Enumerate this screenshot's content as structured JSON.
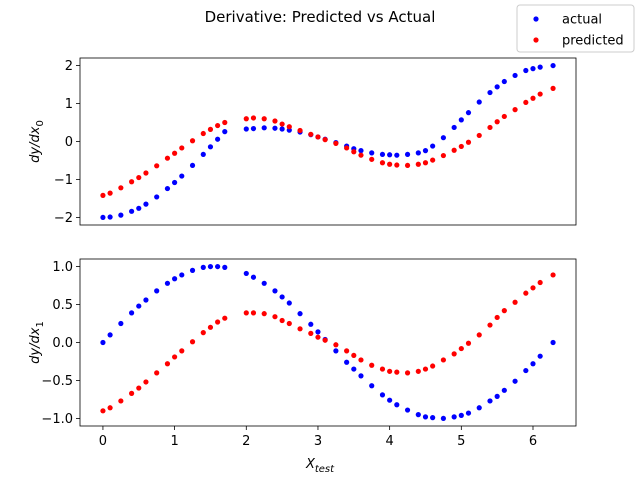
{
  "figure": {
    "title": "Derivative: Predicted vs Actual"
  },
  "legend": {
    "placement": "top-right",
    "entries": [
      {
        "label": "actual",
        "color": "#0000ff"
      },
      {
        "label": "predicted",
        "color": "#ff0000"
      }
    ]
  },
  "chart_data": [
    {
      "type": "scatter",
      "title": "",
      "xlabel": "",
      "ylabel": "dy/dx",
      "ylabel_sub": "0",
      "xlim": [
        -0.32,
        6.6
      ],
      "ylim": [
        -2.2,
        2.2
      ],
      "xticks": [],
      "yticks": [
        -2,
        -1,
        0,
        1,
        2
      ],
      "ytick_labels": [
        "−2",
        "−1",
        "0",
        "1",
        "2"
      ],
      "grid": false,
      "series": [
        {
          "name": "actual",
          "color": "#0000ff",
          "points": [
            [
              0.0,
              -2.0
            ],
            [
              0.1,
              -1.99
            ],
            [
              0.25,
              -1.94
            ],
            [
              0.4,
              -1.84
            ],
            [
              0.5,
              -1.76
            ],
            [
              0.6,
              -1.65
            ],
            [
              0.75,
              -1.46
            ],
            [
              0.9,
              -1.24
            ],
            [
              1.0,
              -1.08
            ],
            [
              1.1,
              -0.91
            ],
            [
              1.25,
              -0.63
            ],
            [
              1.4,
              -0.34
            ],
            [
              1.5,
              -0.14
            ],
            [
              1.6,
              0.06
            ],
            [
              1.7,
              0.26
            ],
            [
              2.0,
              0.33
            ],
            [
              2.1,
              0.34
            ],
            [
              2.25,
              0.36
            ],
            [
              2.4,
              0.35
            ],
            [
              2.5,
              0.33
            ],
            [
              2.6,
              0.3
            ],
            [
              2.75,
              0.25
            ],
            [
              2.9,
              0.18
            ],
            [
              3.0,
              0.12
            ],
            [
              3.1,
              0.06
            ],
            [
              3.25,
              -0.03
            ],
            [
              3.4,
              -0.12
            ],
            [
              3.5,
              -0.19
            ],
            [
              3.6,
              -0.24
            ],
            [
              3.75,
              -0.3
            ],
            [
              3.9,
              -0.34
            ],
            [
              4.0,
              -0.35
            ],
            [
              4.1,
              -0.36
            ],
            [
              4.25,
              -0.34
            ],
            [
              4.4,
              -0.3
            ],
            [
              4.5,
              -0.24
            ],
            [
              4.6,
              -0.12
            ],
            [
              4.75,
              0.1
            ],
            [
              4.9,
              0.37
            ],
            [
              5.0,
              0.57
            ],
            [
              5.1,
              0.76
            ],
            [
              5.25,
              1.04
            ],
            [
              5.4,
              1.29
            ],
            [
              5.5,
              1.44
            ],
            [
              5.6,
              1.58
            ],
            [
              5.75,
              1.74
            ],
            [
              5.9,
              1.87
            ],
            [
              6.0,
              1.92
            ],
            [
              6.1,
              1.96
            ],
            [
              6.28,
              2.0
            ]
          ]
        },
        {
          "name": "predicted",
          "color": "#ff0000",
          "points": [
            [
              0.0,
              -1.42
            ],
            [
              0.1,
              -1.36
            ],
            [
              0.25,
              -1.22
            ],
            [
              0.4,
              -1.06
            ],
            [
              0.5,
              -0.95
            ],
            [
              0.6,
              -0.83
            ],
            [
              0.75,
              -0.64
            ],
            [
              0.9,
              -0.44
            ],
            [
              1.0,
              -0.31
            ],
            [
              1.1,
              -0.17
            ],
            [
              1.25,
              0.02
            ],
            [
              1.4,
              0.21
            ],
            [
              1.5,
              0.32
            ],
            [
              1.6,
              0.42
            ],
            [
              1.7,
              0.5
            ],
            [
              2.0,
              0.6
            ],
            [
              2.1,
              0.62
            ],
            [
              2.25,
              0.6
            ],
            [
              2.4,
              0.54
            ],
            [
              2.5,
              0.46
            ],
            [
              2.6,
              0.39
            ],
            [
              2.75,
              0.29
            ],
            [
              2.9,
              0.19
            ],
            [
              3.0,
              0.12
            ],
            [
              3.1,
              0.05
            ],
            [
              3.25,
              -0.05
            ],
            [
              3.4,
              -0.17
            ],
            [
              3.5,
              -0.27
            ],
            [
              3.6,
              -0.36
            ],
            [
              3.75,
              -0.47
            ],
            [
              3.9,
              -0.56
            ],
            [
              4.0,
              -0.6
            ],
            [
              4.1,
              -0.62
            ],
            [
              4.25,
              -0.63
            ],
            [
              4.4,
              -0.6
            ],
            [
              4.5,
              -0.56
            ],
            [
              4.6,
              -0.49
            ],
            [
              4.75,
              -0.37
            ],
            [
              4.9,
              -0.23
            ],
            [
              5.0,
              -0.13
            ],
            [
              5.1,
              -0.02
            ],
            [
              5.25,
              0.16
            ],
            [
              5.4,
              0.37
            ],
            [
              5.5,
              0.52
            ],
            [
              5.6,
              0.66
            ],
            [
              5.75,
              0.84
            ],
            [
              5.9,
              1.03
            ],
            [
              6.0,
              1.14
            ],
            [
              6.1,
              1.25
            ],
            [
              6.28,
              1.4
            ]
          ]
        }
      ]
    },
    {
      "type": "scatter",
      "title": "",
      "xlabel": "X",
      "xlabel_sub": "test",
      "ylabel": "dy/dx",
      "ylabel_sub": "1",
      "xlim": [
        -0.32,
        6.6
      ],
      "ylim": [
        -1.1,
        1.1
      ],
      "xticks": [
        0,
        1,
        2,
        3,
        4,
        5,
        6
      ],
      "xtick_labels": [
        "0",
        "1",
        "2",
        "3",
        "4",
        "5",
        "6"
      ],
      "yticks": [
        -1.0,
        -0.5,
        0.0,
        0.5,
        1.0
      ],
      "ytick_labels": [
        "−1.0",
        "−0.5",
        "0.0",
        "0.5",
        "1.0"
      ],
      "grid": false,
      "series": [
        {
          "name": "actual",
          "color": "#0000ff",
          "points": [
            [
              0.0,
              0.0
            ],
            [
              0.1,
              0.1
            ],
            [
              0.25,
              0.25
            ],
            [
              0.4,
              0.39
            ],
            [
              0.5,
              0.48
            ],
            [
              0.6,
              0.56
            ],
            [
              0.75,
              0.68
            ],
            [
              0.9,
              0.78
            ],
            [
              1.0,
              0.84
            ],
            [
              1.1,
              0.89
            ],
            [
              1.25,
              0.95
            ],
            [
              1.4,
              0.99
            ],
            [
              1.5,
              1.0
            ],
            [
              1.6,
              1.0
            ],
            [
              1.7,
              0.99
            ],
            [
              2.0,
              0.91
            ],
            [
              2.1,
              0.86
            ],
            [
              2.25,
              0.78
            ],
            [
              2.4,
              0.68
            ],
            [
              2.5,
              0.6
            ],
            [
              2.6,
              0.52
            ],
            [
              2.75,
              0.38
            ],
            [
              2.9,
              0.24
            ],
            [
              3.0,
              0.14
            ],
            [
              3.1,
              0.04
            ],
            [
              3.25,
              -0.11
            ],
            [
              3.4,
              -0.26
            ],
            [
              3.5,
              -0.35
            ],
            [
              3.6,
              -0.44
            ],
            [
              3.75,
              -0.57
            ],
            [
              3.9,
              -0.69
            ],
            [
              4.0,
              -0.76
            ],
            [
              4.1,
              -0.82
            ],
            [
              4.25,
              -0.89
            ],
            [
              4.4,
              -0.95
            ],
            [
              4.5,
              -0.98
            ],
            [
              4.6,
              -0.99
            ],
            [
              4.75,
              -1.0
            ],
            [
              4.9,
              -0.98
            ],
            [
              5.0,
              -0.96
            ],
            [
              5.1,
              -0.93
            ],
            [
              5.25,
              -0.86
            ],
            [
              5.4,
              -0.77
            ],
            [
              5.5,
              -0.71
            ],
            [
              5.6,
              -0.63
            ],
            [
              5.75,
              -0.51
            ],
            [
              5.9,
              -0.37
            ],
            [
              6.0,
              -0.28
            ],
            [
              6.1,
              -0.18
            ],
            [
              6.28,
              0.0
            ]
          ]
        },
        {
          "name": "predicted",
          "color": "#ff0000",
          "points": [
            [
              0.0,
              -0.9
            ],
            [
              0.1,
              -0.86
            ],
            [
              0.25,
              -0.77
            ],
            [
              0.4,
              -0.67
            ],
            [
              0.5,
              -0.6
            ],
            [
              0.6,
              -0.52
            ],
            [
              0.75,
              -0.4
            ],
            [
              0.9,
              -0.28
            ],
            [
              1.0,
              -0.19
            ],
            [
              1.1,
              -0.11
            ],
            [
              1.25,
              0.01
            ],
            [
              1.4,
              0.13
            ],
            [
              1.5,
              0.2
            ],
            [
              1.6,
              0.27
            ],
            [
              1.7,
              0.32
            ],
            [
              2.0,
              0.39
            ],
            [
              2.1,
              0.39
            ],
            [
              2.25,
              0.38
            ],
            [
              2.4,
              0.34
            ],
            [
              2.5,
              0.29
            ],
            [
              2.6,
              0.25
            ],
            [
              2.75,
              0.18
            ],
            [
              2.9,
              0.12
            ],
            [
              3.0,
              0.07
            ],
            [
              3.1,
              0.03
            ],
            [
              3.25,
              -0.03
            ],
            [
              3.4,
              -0.11
            ],
            [
              3.5,
              -0.17
            ],
            [
              3.6,
              -0.23
            ],
            [
              3.75,
              -0.3
            ],
            [
              3.9,
              -0.35
            ],
            [
              4.0,
              -0.38
            ],
            [
              4.1,
              -0.39
            ],
            [
              4.25,
              -0.4
            ],
            [
              4.4,
              -0.38
            ],
            [
              4.5,
              -0.35
            ],
            [
              4.6,
              -0.31
            ],
            [
              4.75,
              -0.23
            ],
            [
              4.9,
              -0.15
            ],
            [
              5.0,
              -0.08
            ],
            [
              5.1,
              -0.01
            ],
            [
              5.25,
              0.1
            ],
            [
              5.4,
              0.23
            ],
            [
              5.5,
              0.33
            ],
            [
              5.6,
              0.42
            ],
            [
              5.75,
              0.53
            ],
            [
              5.9,
              0.65
            ],
            [
              6.0,
              0.72
            ],
            [
              6.1,
              0.79
            ],
            [
              6.28,
              0.89
            ]
          ]
        }
      ]
    }
  ]
}
